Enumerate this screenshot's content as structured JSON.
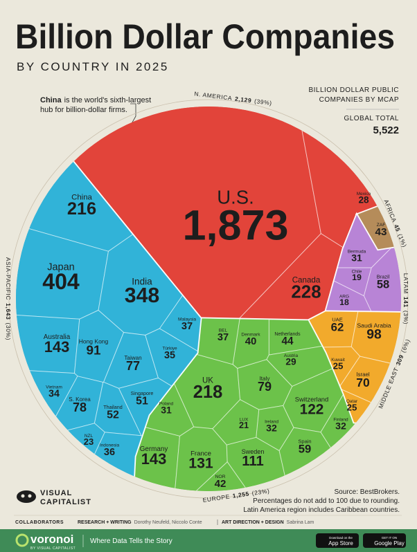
{
  "header": {
    "title": "Billion Dollar Companies",
    "subtitle": "BY COUNTRY IN 2025"
  },
  "annotation": {
    "bold": "China",
    "text": "is the world's sixth-largest",
    "text2": "hub for billion-dollar firms."
  },
  "chart_data": {
    "type": "voronoi-treemap",
    "legend_title": [
      "BILLION DOLLAR PUBLIC",
      "COMPANIES BY MCAP"
    ],
    "total_title": "GLOBAL TOTAL",
    "total": 5522,
    "total_label": "5,522",
    "regions": [
      {
        "name": "N. AMERICA",
        "value": 2129,
        "value_label": "2,129",
        "share": 39,
        "share_label": "(39%)",
        "color": "#e2443a",
        "countries": [
          {
            "name": "U.S.",
            "value": 1873,
            "value_label": "1,873"
          },
          {
            "name": "Canada",
            "value": 228
          },
          {
            "name": "Mexico",
            "value": 28
          }
        ]
      },
      {
        "name": "AFRICA",
        "value": 45,
        "share": 1,
        "share_label": "(1%)",
        "color": "#b58c5a",
        "countries": [
          {
            "name": "ZAF",
            "value": 43
          }
        ]
      },
      {
        "name": "LATAM",
        "value": 141,
        "share": 3,
        "share_label": "(3%)",
        "color": "#b884d6",
        "countries": [
          {
            "name": "Bermuda",
            "value": 31
          },
          {
            "name": "Chile",
            "value": 19
          },
          {
            "name": "Brazil",
            "value": 58
          },
          {
            "name": "ARG",
            "value": 18
          }
        ]
      },
      {
        "name": "MIDDLE EAST",
        "value": 309,
        "share": 6,
        "share_label": "(6%)",
        "color": "#f2aa2c",
        "countries": [
          {
            "name": "UAE",
            "value": 62
          },
          {
            "name": "Saudi Arabia",
            "value": 98
          },
          {
            "name": "Israel",
            "value": 70
          },
          {
            "name": "Kuwait",
            "value": 25
          },
          {
            "name": "Qatar",
            "value": 25
          }
        ]
      },
      {
        "name": "EUROPE",
        "value": 1255,
        "value_label": "1,255",
        "share": 23,
        "share_label": "(23%)",
        "color": "#6cc24a",
        "countries": [
          {
            "name": "UK",
            "value": 218
          },
          {
            "name": "Germany",
            "value": 143
          },
          {
            "name": "France",
            "value": 131
          },
          {
            "name": "Sweden",
            "value": 111
          },
          {
            "name": "Switzerland",
            "value": 122
          },
          {
            "name": "Italy",
            "value": 79
          },
          {
            "name": "Netherlands",
            "value": 44
          },
          {
            "name": "Denmark",
            "value": 40
          },
          {
            "name": "BEL",
            "value": 37
          },
          {
            "name": "Spain",
            "value": 59
          },
          {
            "name": "Ireland",
            "value": 32
          },
          {
            "name": "Finland",
            "value": 32
          },
          {
            "name": "Austria",
            "value": 29
          },
          {
            "name": "Poland",
            "value": 31
          },
          {
            "name": "LUX",
            "value": 21
          },
          {
            "name": "NOR",
            "value": 42
          }
        ]
      },
      {
        "name": "ASIA-PACIFIC",
        "value": 1643,
        "value_label": "1,643",
        "share": 30,
        "share_label": "(30%)",
        "color": "#31b3d8",
        "countries": [
          {
            "name": "China",
            "value": 216
          },
          {
            "name": "Japan",
            "value": 404
          },
          {
            "name": "India",
            "value": 348
          },
          {
            "name": "Australia",
            "value": 143
          },
          {
            "name": "Hong Kong",
            "value": 91
          },
          {
            "name": "Taiwan",
            "value": 77
          },
          {
            "name": "Malaysia",
            "value": 37
          },
          {
            "name": "Türkiye",
            "value": 35
          },
          {
            "name": "Vietnam",
            "value": 34
          },
          {
            "name": "S. Korea",
            "value": 78
          },
          {
            "name": "Singapore",
            "value": 51
          },
          {
            "name": "Thailand",
            "value": 52
          },
          {
            "name": "NZL",
            "value": 23
          },
          {
            "name": "Indonesia",
            "value": 36
          }
        ]
      }
    ]
  },
  "notes": {
    "source": "Source: BestBrokers.",
    "lines": [
      "Percentages do not add to 100 due to rounding.",
      "Latin America region includes Caribbean countries."
    ]
  },
  "brand": {
    "line1": "VISUAL",
    "line2": "CAPITALIST"
  },
  "credits": {
    "label": "COLLABORATORS",
    "role1": "RESEARCH + WRITING",
    "names1": "Dorothy Neufeld, Niccolo Conte",
    "role2": "ART DIRECTION + DESIGN",
    "names2": "Sabrina Lam"
  },
  "footer": {
    "logo": "voronoi",
    "logo_sub": "BY VISUAL CAPITALIST",
    "tagline": "Where Data Tells the Story",
    "app_store_top": "Download on the",
    "app_store": "App Store",
    "play_top": "GET IT ON",
    "play": "Google Play"
  }
}
